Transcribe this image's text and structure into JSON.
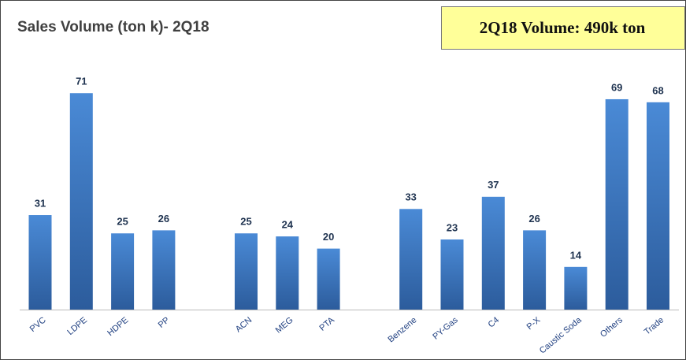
{
  "chart_data": {
    "type": "bar",
    "title": "Sales Volume (ton k)- 2Q18",
    "annotation": "2Q18  Volume: 490k ton",
    "categories": [
      "PVC",
      "LDPE",
      "HDPE",
      "PP",
      null,
      "ACN",
      "MEG",
      "PTA",
      null,
      "Benzene",
      "PY-Gas",
      "C4",
      "P-X",
      "Caustic Soda",
      "Others",
      "Trade"
    ],
    "values": [
      31,
      71,
      25,
      26,
      null,
      25,
      24,
      20,
      null,
      33,
      23,
      37,
      26,
      14,
      69,
      68
    ],
    "color": "#3a78c8"
  }
}
